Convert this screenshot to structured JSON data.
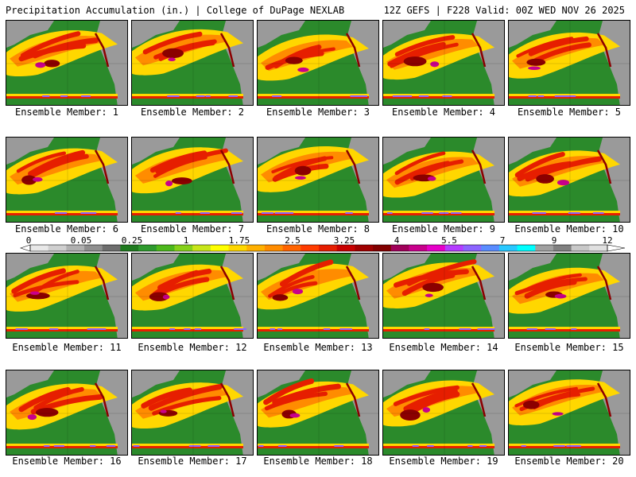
{
  "header": {
    "title_left": "Precipitation Accumulation (in.) | College of DuPage NEXLAB",
    "title_right": "12Z GEFS | F228 Valid: 00Z WED NOV 26 2025"
  },
  "members": [
    {
      "label": "Ensemble Member: 1"
    },
    {
      "label": "Ensemble Member: 2"
    },
    {
      "label": "Ensemble Member: 3"
    },
    {
      "label": "Ensemble Member: 4"
    },
    {
      "label": "Ensemble Member: 5"
    },
    {
      "label": "Ensemble Member: 6"
    },
    {
      "label": "Ensemble Member: 7"
    },
    {
      "label": "Ensemble Member: 8"
    },
    {
      "label": "Ensemble Member: 9"
    },
    {
      "label": "Ensemble Member: 10"
    },
    {
      "label": "Ensemble Member: 11"
    },
    {
      "label": "Ensemble Member: 12"
    },
    {
      "label": "Ensemble Member: 13"
    },
    {
      "label": "Ensemble Member: 14"
    },
    {
      "label": "Ensemble Member: 15"
    },
    {
      "label": "Ensemble Member: 16"
    },
    {
      "label": "Ensemble Member: 17"
    },
    {
      "label": "Ensemble Member: 18"
    },
    {
      "label": "Ensemble Member: 19"
    },
    {
      "label": "Ensemble Member: 20"
    }
  ],
  "colorbar": {
    "ticks": [
      "0",
      "0.05",
      "0.25",
      "1",
      "1.75",
      "2.5",
      "3.25",
      "4",
      "5.5",
      "7",
      "9",
      "12"
    ],
    "colors": [
      "#e8e8e8",
      "#cfcfcf",
      "#b0b0b0",
      "#8f8f8f",
      "#6e6e6e",
      "#1f7a1f",
      "#2e9a2e",
      "#4cb81c",
      "#86d11a",
      "#c8e61a",
      "#ffff00",
      "#ffd700",
      "#ffb000",
      "#ff8c00",
      "#ff6400",
      "#ff3c00",
      "#e61e00",
      "#c80000",
      "#a00000",
      "#820000",
      "#a0005a",
      "#c8008c",
      "#e600c8",
      "#b43cff",
      "#8c64ff",
      "#5a8cff",
      "#28c8ff",
      "#00ffff",
      "#a0a0a0",
      "#808080",
      "#c8c8c8",
      "#e0e0e0"
    ]
  },
  "map": {
    "ocean_green": "#2b8a2b",
    "land_gray": "#9a9a9a",
    "precip_yellow": "#ffd700",
    "precip_orange": "#ff8c00",
    "precip_red": "#e61e00",
    "precip_darkred": "#8b0000",
    "precip_magenta": "#c8008c",
    "precip_purple": "#8c64ff"
  }
}
